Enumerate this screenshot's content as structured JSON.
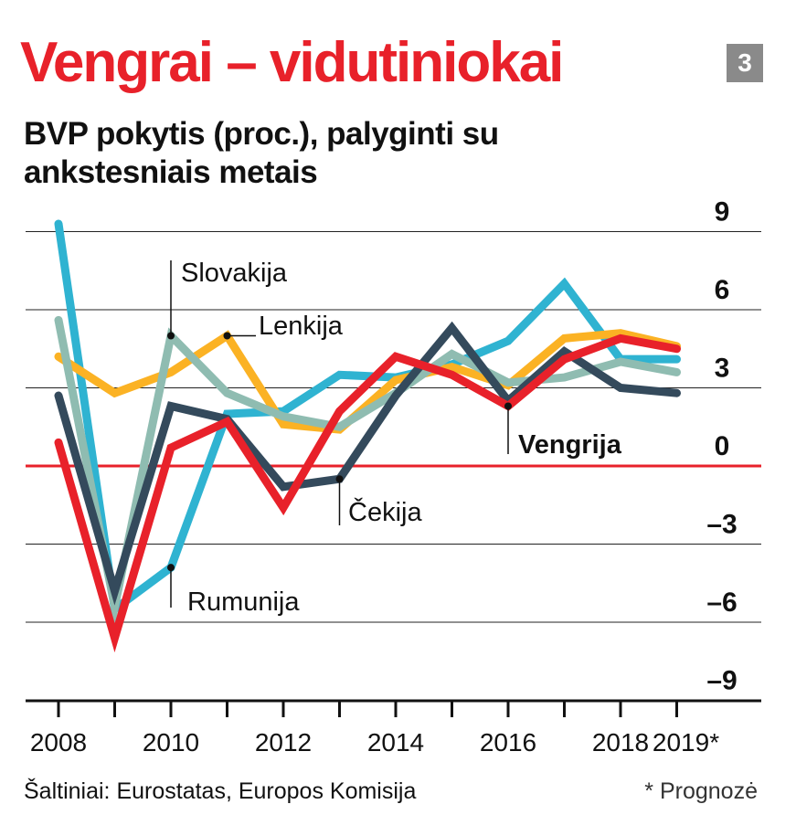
{
  "header": {
    "title": "Vengrai – vidutiniokai",
    "badge": "3",
    "subtitle": "BVP pokytis (proc.), palyginti su ankstesniais metais"
  },
  "footer": {
    "source": "Šaltiniai: Eurostatas, Europos Komisija",
    "note": "* Prognozė"
  },
  "colors": {
    "Rumunija": "#2fb3d1",
    "Lenkija": "#fbb224",
    "Slovakija": "#8fbcb1",
    "Čekija": "#344a5c",
    "Vengrija": "#e8212a",
    "zero_line": "#e8212a",
    "grid": "#222222"
  },
  "chart_data": {
    "type": "line",
    "x_tick_labels": [
      "2008",
      "2010",
      "2012",
      "2014",
      "2016",
      "2018",
      "2019*"
    ],
    "ylim": [
      -9,
      9
    ],
    "y_ticks": [
      9,
      6,
      3,
      0,
      -3,
      -6,
      -9
    ],
    "y_tick_labels": [
      "9",
      "6",
      "3",
      "0",
      "–3",
      "–6",
      "–9"
    ],
    "x": [
      2008,
      2009,
      2010,
      2011,
      2012,
      2013,
      2014,
      2015,
      2016,
      2017,
      2018,
      2019
    ],
    "series": [
      {
        "name": "Rumunija",
        "values": [
          9.3,
          -5.5,
          -3.9,
          2.0,
          2.1,
          3.5,
          3.4,
          3.9,
          4.8,
          7.0,
          4.1,
          4.1
        ]
      },
      {
        "name": "Lenkija",
        "values": [
          4.2,
          2.8,
          3.6,
          5.0,
          1.6,
          1.4,
          3.3,
          3.8,
          3.1,
          4.9,
          5.1,
          4.6
        ]
      },
      {
        "name": "Slovakija",
        "values": [
          5.6,
          -5.4,
          5.0,
          2.8,
          1.9,
          1.5,
          2.8,
          4.3,
          3.2,
          3.4,
          4.0,
          3.6
        ]
      },
      {
        "name": "Čekija",
        "values": [
          2.7,
          -4.8,
          2.3,
          1.8,
          -0.8,
          -0.5,
          2.7,
          5.3,
          2.5,
          4.4,
          3.0,
          2.8
        ]
      },
      {
        "name": "Vengrija",
        "values": [
          0.9,
          -6.6,
          0.7,
          1.7,
          -1.6,
          2.1,
          4.2,
          3.5,
          2.3,
          4.1,
          4.9,
          4.5
        ]
      }
    ],
    "annotations": [
      {
        "label": "Slovakija",
        "series": "Slovakija",
        "year": 2010
      },
      {
        "label": "Lenkija",
        "series": "Lenkija",
        "year": 2011
      },
      {
        "label": "Rumunija",
        "series": "Rumunija",
        "year": 2010
      },
      {
        "label": "Čekija",
        "series": "Čekija",
        "year": 2013
      },
      {
        "label": "Vengrija",
        "series": "Vengrija",
        "year": 2016
      }
    ],
    "grid": true
  }
}
